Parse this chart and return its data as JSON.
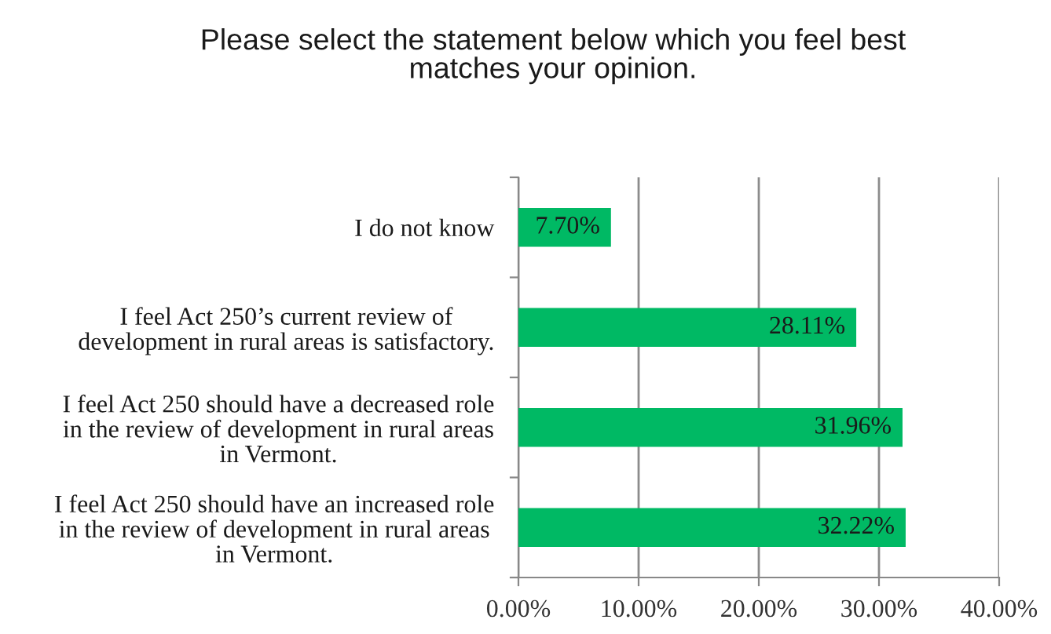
{
  "chart_data": {
    "type": "bar",
    "orientation": "horizontal",
    "title": "Please select the statement below which you feel best\nmatches your opinion.",
    "categories": [
      "I do not know",
      "I feel Act 250’s current review of\ndevelopment in rural areas is satisfactory.",
      "I feel Act 250 should have a decreased role\nin the review of development in rural areas\nin Vermont.",
      "I feel Act 250 should have an increased role\nin the review of development in rural areas\nin Vermont."
    ],
    "series": [
      {
        "color": "#00b964",
        "values": [
          7.7,
          28.11,
          31.96,
          32.22
        ],
        "value_labels": [
          "7.70%",
          "28.11%",
          "31.96%",
          "32.22%"
        ]
      }
    ],
    "xlim": [
      0,
      40
    ],
    "xticks": [
      {
        "value": 0,
        "label": "0.00%"
      },
      {
        "value": 10,
        "label": "10.00%"
      },
      {
        "value": 20,
        "label": "20.00%"
      },
      {
        "value": 30,
        "label": "30.00%"
      },
      {
        "value": 40,
        "label": "40.00%"
      }
    ],
    "grid": "x",
    "legend": false
  }
}
